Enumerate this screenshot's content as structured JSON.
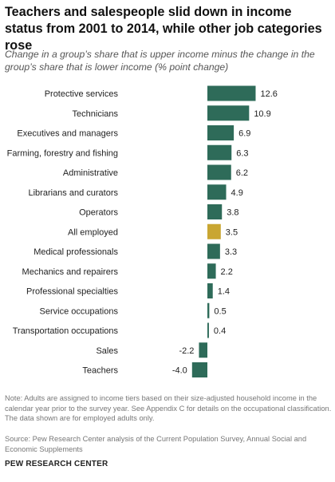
{
  "header": {
    "title": "Teachers and salespeople slid down in income status from 2001 to 2014, while other job categories rose",
    "subtitle": "Change in a group’s share that is upper income minus the change in the group’s share that is lower income (% point change)"
  },
  "chart_data": {
    "type": "bar",
    "orientation": "horizontal",
    "categories": [
      "Protective services",
      "Technicians",
      "Executives and managers",
      "Farming, forestry and fishing",
      "Administrative",
      "Librarians and curators",
      "Operators",
      "All employed",
      "Medical professionals",
      "Mechanics and repairers",
      "Professional specialties",
      "Service occupations",
      "Transportation occupations",
      "Sales",
      "Teachers"
    ],
    "values": [
      12.6,
      10.9,
      6.9,
      6.3,
      6.2,
      4.9,
      3.8,
      3.5,
      3.3,
      2.2,
      1.4,
      0.5,
      0.4,
      -2.2,
      -4.0
    ],
    "value_labels": [
      "12.6",
      "10.9",
      "6.9",
      "6.3",
      "6.2",
      "4.9",
      "3.8",
      "3.5",
      "3.3",
      "2.2",
      "1.4",
      "0.5",
      "0.4",
      "-2.2",
      "-4.0"
    ],
    "highlight_category": "All employed",
    "colors": {
      "bar": "#2e6b59",
      "highlight": "#c9a632"
    },
    "xlim": [
      -4.0,
      12.6
    ],
    "grid": false,
    "legend": false
  },
  "footer": {
    "note": "Note: Adults are assigned to income tiers based on their size-adjusted household income in the calendar year prior to the survey year. See Appendix C for details on the occupational classification. The data shown are for employed adults only.",
    "source": "Source: Pew Research Center analysis of the Current Population Survey, Annual Social and Economic Supplements",
    "brand": "PEW RESEARCH CENTER"
  }
}
